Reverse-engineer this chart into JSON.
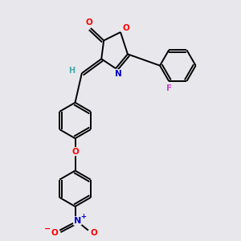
{
  "background_color": "#e8e8ec",
  "bond_color": "#000000",
  "atom_colors": {
    "O": "#ff0000",
    "N": "#0000cc",
    "F": "#cc44cc",
    "H": "#44aaaa",
    "C": "#000000"
  },
  "figsize": [
    3.0,
    3.0
  ],
  "dpi": 100
}
